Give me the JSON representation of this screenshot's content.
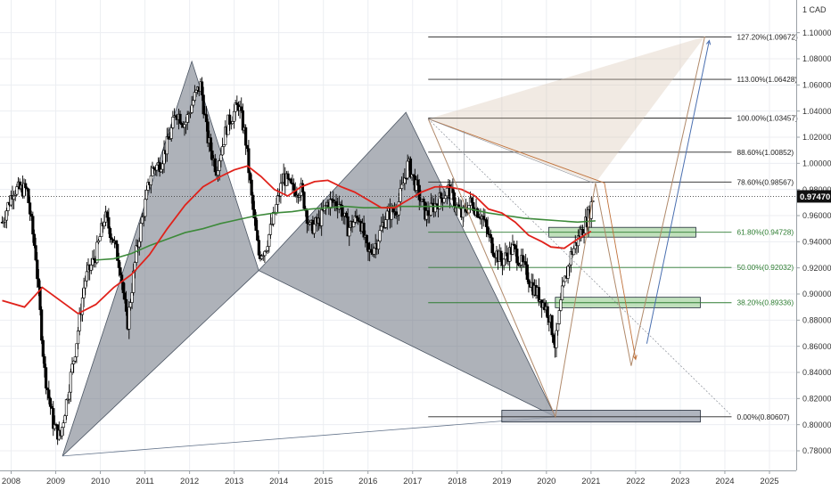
{
  "chart_data": {
    "type": "candlestick",
    "currency_label": "1 CAD",
    "last_price": "0.97470",
    "colors": {
      "background": "#ffffff",
      "price_bar": "#000000",
      "ma_fast": "#e0221b",
      "ma_slow": "#3d8a3a",
      "pattern_fill": "#6b7280",
      "projection": "#b0896a",
      "projection_arrow": "#4a6fb0",
      "zone_fill": "#b5dbb0",
      "zone_stroke": "#2e7d32",
      "fib_green": "#2e7d32"
    },
    "y_axis": {
      "min": 0.765,
      "max": 1.125,
      "ticks": [
        {
          "value": 0.78,
          "label": "0.78000"
        },
        {
          "value": 0.8,
          "label": "0.80000"
        },
        {
          "value": 0.82,
          "label": "0.82000"
        },
        {
          "value": 0.84,
          "label": "0.84000"
        },
        {
          "value": 0.86,
          "label": "0.86000"
        },
        {
          "value": 0.88,
          "label": "0.88000"
        },
        {
          "value": 0.9,
          "label": "0.90000"
        },
        {
          "value": 0.92,
          "label": "0.92000"
        },
        {
          "value": 0.94,
          "label": "0.94000"
        },
        {
          "value": 0.96,
          "label": "0.96000"
        },
        {
          "value": 0.98,
          "label": "0.98000"
        },
        {
          "value": 1.0,
          "label": "1.00000"
        },
        {
          "value": 1.02,
          "label": "1.02000"
        },
        {
          "value": 1.04,
          "label": "1.04000"
        },
        {
          "value": 1.06,
          "label": "1.06000"
        },
        {
          "value": 1.08,
          "label": "1.08000"
        },
        {
          "value": 1.1,
          "label": "1.10000"
        }
      ]
    },
    "x_axis": {
      "min": 2007.75,
      "max": 2025.6,
      "ticks": [
        "2008",
        "2009",
        "2010",
        "2011",
        "2012",
        "2013",
        "2014",
        "2015",
        "2016",
        "2017",
        "2018",
        "2019",
        "2020",
        "2021",
        "2022",
        "2023",
        "2024",
        "2025"
      ]
    },
    "price_series": [
      [
        2007.8,
        0.955
      ],
      [
        2008.05,
        0.98
      ],
      [
        2008.35,
        0.98
      ],
      [
        2008.55,
        0.93
      ],
      [
        2008.75,
        0.84
      ],
      [
        2008.95,
        0.8
      ],
      [
        2009.1,
        0.79
      ],
      [
        2009.25,
        0.82
      ],
      [
        2009.45,
        0.86
      ],
      [
        2009.65,
        0.91
      ],
      [
        2009.9,
        0.93
      ],
      [
        2010.1,
        0.96
      ],
      [
        2010.3,
        0.94
      ],
      [
        2010.45,
        0.92
      ],
      [
        2010.6,
        0.875
      ],
      [
        2010.8,
        0.93
      ],
      [
        2010.95,
        0.96
      ],
      [
        2011.15,
        0.995
      ],
      [
        2011.35,
        1.0
      ],
      [
        2011.55,
        1.02
      ],
      [
        2011.7,
        1.04
      ],
      [
        2011.9,
        1.03
      ],
      [
        2012.1,
        1.05
      ],
      [
        2012.25,
        1.06
      ],
      [
        2012.4,
        1.02
      ],
      [
        2012.6,
        0.995
      ],
      [
        2012.85,
        1.03
      ],
      [
        2013.1,
        1.045
      ],
      [
        2013.25,
        1.02
      ],
      [
        2013.4,
        0.97
      ],
      [
        2013.55,
        0.93
      ],
      [
        2013.7,
        0.935
      ],
      [
        2013.9,
        0.96
      ],
      [
        2014.1,
        0.99
      ],
      [
        2014.3,
        0.98
      ],
      [
        2014.5,
        0.98
      ],
      [
        2014.7,
        0.95
      ],
      [
        2014.9,
        0.955
      ],
      [
        2015.1,
        0.97
      ],
      [
        2015.35,
        0.97
      ],
      [
        2015.55,
        0.95
      ],
      [
        2015.8,
        0.96
      ],
      [
        2016.0,
        0.93
      ],
      [
        2016.2,
        0.94
      ],
      [
        2016.4,
        0.96
      ],
      [
        2016.65,
        0.965
      ],
      [
        2016.9,
        1.0
      ],
      [
        2017.1,
        0.98
      ],
      [
        2017.3,
        0.96
      ],
      [
        2017.55,
        0.97
      ],
      [
        2017.8,
        0.98
      ],
      [
        2018.1,
        0.96
      ],
      [
        2018.3,
        0.97
      ],
      [
        2018.55,
        0.96
      ],
      [
        2018.8,
        0.935
      ],
      [
        2019.0,
        0.925
      ],
      [
        2019.25,
        0.935
      ],
      [
        2019.5,
        0.92
      ],
      [
        2019.7,
        0.905
      ],
      [
        2019.9,
        0.895
      ],
      [
        2020.05,
        0.885
      ],
      [
        2020.2,
        0.86
      ],
      [
        2020.35,
        0.9
      ],
      [
        2020.55,
        0.93
      ],
      [
        2020.75,
        0.945
      ],
      [
        2020.95,
        0.96
      ],
      [
        2021.05,
        0.975
      ]
    ],
    "ma_fast_series": [
      [
        2007.8,
        0.895
      ],
      [
        2008.3,
        0.89
      ],
      [
        2008.7,
        0.905
      ],
      [
        2009.1,
        0.895
      ],
      [
        2009.5,
        0.885
      ],
      [
        2009.9,
        0.892
      ],
      [
        2010.3,
        0.905
      ],
      [
        2010.7,
        0.915
      ],
      [
        2011.1,
        0.93
      ],
      [
        2011.5,
        0.95
      ],
      [
        2011.9,
        0.968
      ],
      [
        2012.3,
        0.982
      ],
      [
        2012.7,
        0.99
      ],
      [
        2013.0,
        0.995
      ],
      [
        2013.3,
        0.998
      ],
      [
        2013.6,
        0.99
      ],
      [
        2013.9,
        0.98
      ],
      [
        2014.2,
        0.975
      ],
      [
        2014.5,
        0.982
      ],
      [
        2014.8,
        0.986
      ],
      [
        2015.1,
        0.987
      ],
      [
        2015.4,
        0.982
      ],
      [
        2015.7,
        0.978
      ],
      [
        2016.0,
        0.972
      ],
      [
        2016.3,
        0.966
      ],
      [
        2016.6,
        0.966
      ],
      [
        2016.9,
        0.972
      ],
      [
        2017.2,
        0.978
      ],
      [
        2017.5,
        0.982
      ],
      [
        2017.8,
        0.982
      ],
      [
        2018.1,
        0.98
      ],
      [
        2018.4,
        0.975
      ],
      [
        2018.7,
        0.965
      ],
      [
        2019.0,
        0.962
      ],
      [
        2019.3,
        0.955
      ],
      [
        2019.6,
        0.945
      ],
      [
        2019.9,
        0.94
      ],
      [
        2020.1,
        0.936
      ],
      [
        2020.4,
        0.935
      ],
      [
        2020.7,
        0.942
      ],
      [
        2021.0,
        0.948
      ]
    ],
    "ma_slow_series": [
      [
        2009.9,
        0.926
      ],
      [
        2010.3,
        0.927
      ],
      [
        2010.7,
        0.931
      ],
      [
        2011.1,
        0.937
      ],
      [
        2011.5,
        0.942
      ],
      [
        2011.9,
        0.947
      ],
      [
        2012.3,
        0.95
      ],
      [
        2012.7,
        0.954
      ],
      [
        2013.1,
        0.957
      ],
      [
        2013.5,
        0.96
      ],
      [
        2013.9,
        0.962
      ],
      [
        2014.3,
        0.963
      ],
      [
        2014.7,
        0.965
      ],
      [
        2015.1,
        0.966
      ],
      [
        2015.5,
        0.967
      ],
      [
        2015.9,
        0.966
      ],
      [
        2016.3,
        0.966
      ],
      [
        2016.7,
        0.967
      ],
      [
        2017.1,
        0.967
      ],
      [
        2017.5,
        0.967
      ],
      [
        2017.9,
        0.967
      ],
      [
        2018.3,
        0.965
      ],
      [
        2018.7,
        0.962
      ],
      [
        2019.1,
        0.96
      ],
      [
        2019.5,
        0.958
      ],
      [
        2019.9,
        0.957
      ],
      [
        2020.3,
        0.956
      ],
      [
        2020.7,
        0.955
      ],
      [
        2021.1,
        0.956
      ]
    ],
    "pattern_points": {
      "A": [
        2009.15,
        0.776
      ],
      "B": [
        2012.05,
        1.078
      ],
      "C": [
        2013.55,
        0.918
      ],
      "D": [
        2016.85,
        1.039
      ],
      "E": [
        2020.2,
        0.806
      ]
    },
    "projection_path": [
      [
        2017.35,
        1.034
      ],
      [
        2020.2,
        0.806
      ],
      [
        2021.1,
        0.985
      ],
      [
        2021.9,
        0.845
      ],
      [
        2023.55,
        1.097
      ]
    ],
    "projection_path_2": [
      [
        2017.35,
        1.034
      ],
      [
        2021.3,
        0.985
      ],
      [
        2022.0,
        0.85
      ]
    ],
    "projection_arrow_line": [
      [
        2022.25,
        0.862
      ],
      [
        2023.65,
        1.094
      ]
    ],
    "fib_levels": [
      {
        "value": 1.09672,
        "label": "127.20%(1.09672)",
        "color": "black"
      },
      {
        "value": 1.06428,
        "label": "113.00%(1.06428)",
        "color": "black"
      },
      {
        "value": 1.03457,
        "label": "100.00%(1.03457)",
        "color": "black"
      },
      {
        "value": 1.00852,
        "label": "88.60%(1.00852)",
        "color": "black"
      },
      {
        "value": 0.98567,
        "label": "78.60%(0.98567)",
        "color": "black"
      },
      {
        "value": 0.94728,
        "label": "61.80%(0.94728)",
        "color": "green"
      },
      {
        "value": 0.92032,
        "label": "50.00%(0.92032)",
        "color": "green"
      },
      {
        "value": 0.89336,
        "label": "38.20%(0.89336)",
        "color": "green"
      },
      {
        "value": 0.80607,
        "label": "0.00%(0.80607)",
        "color": "black"
      }
    ],
    "fib_x_range": [
      2017.35,
      2024.15
    ],
    "zones": [
      {
        "x": [
          2020.05,
          2023.35
        ],
        "y": [
          0.9435,
          0.951
        ],
        "fill": "green"
      },
      {
        "x": [
          2020.2,
          2023.45
        ],
        "y": [
          0.8895,
          0.8975
        ],
        "fill": "green"
      },
      {
        "x": [
          2019.0,
          2023.45
        ],
        "y": [
          0.802,
          0.811
        ],
        "fill": "gray"
      }
    ]
  }
}
